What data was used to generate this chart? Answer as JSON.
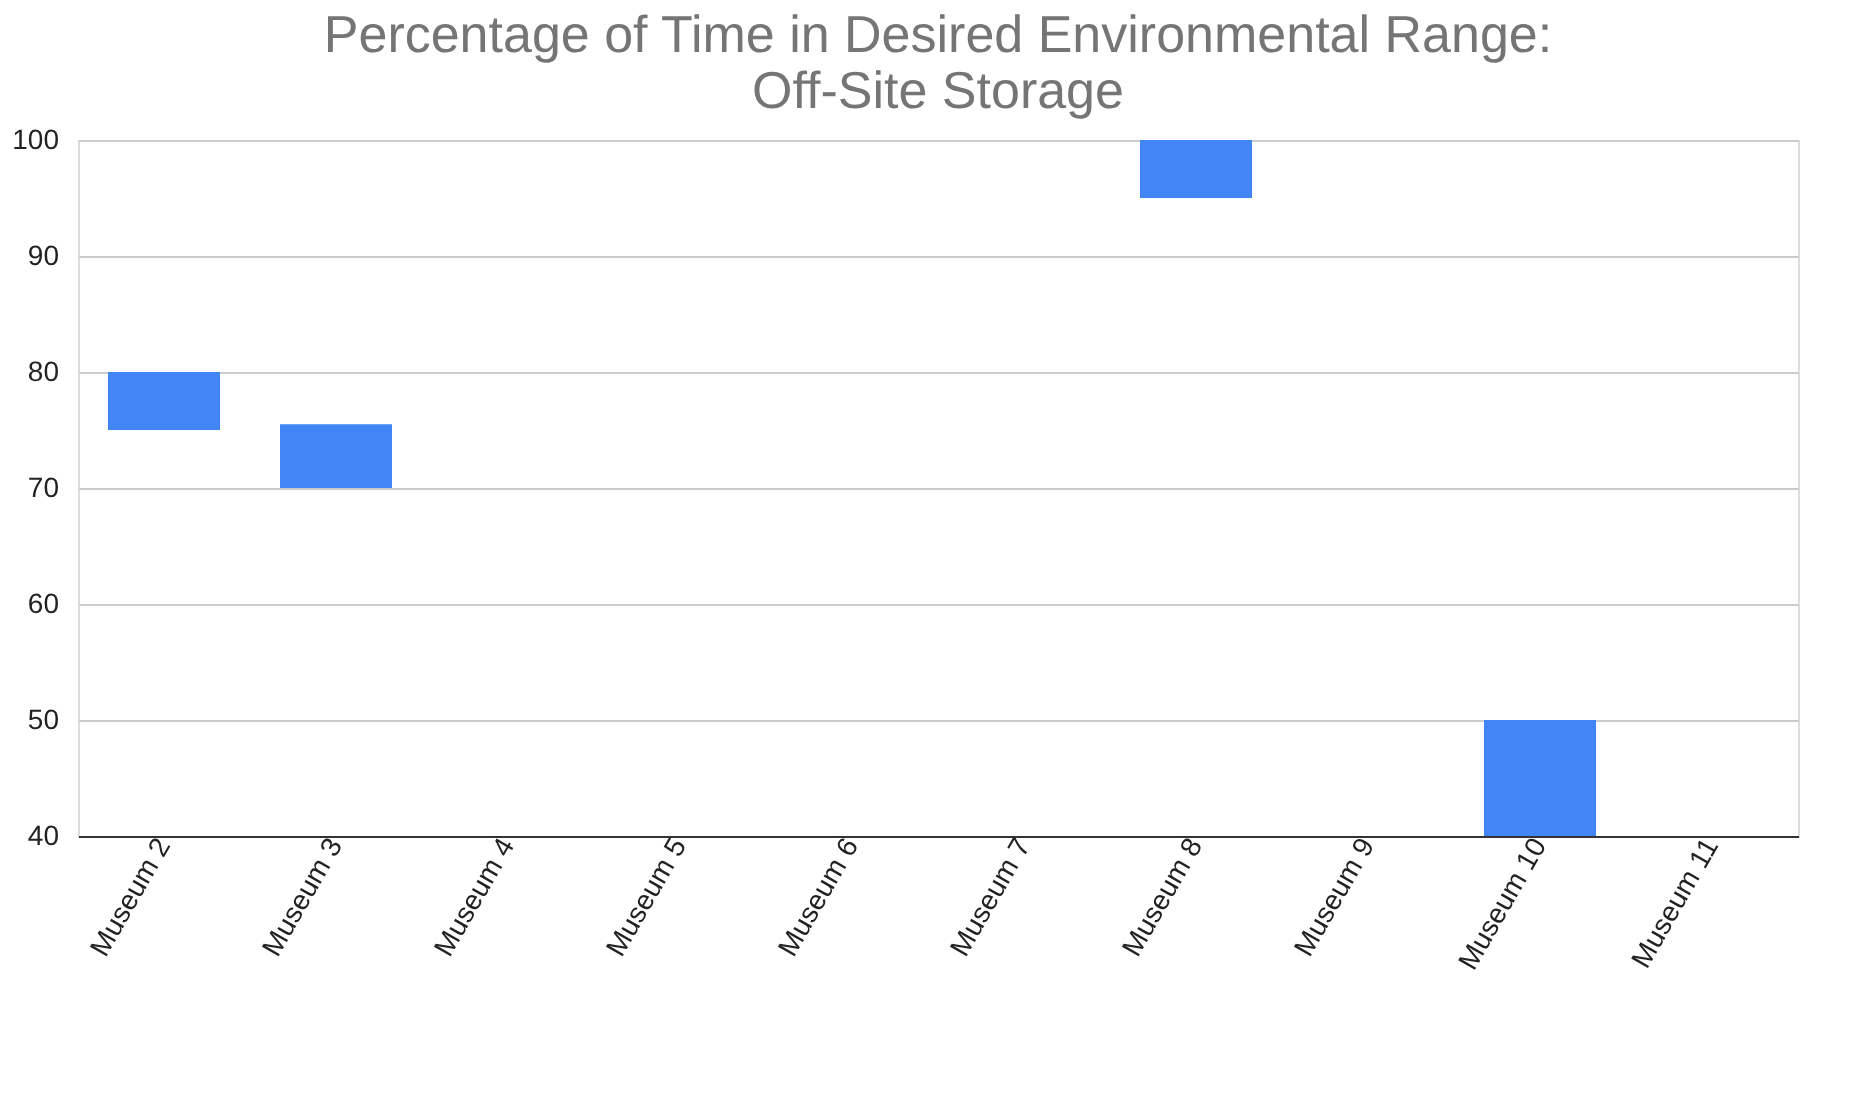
{
  "chart_data": {
    "type": "bar",
    "title": "Percentage of Time in Desired Environmental Range:\nOff-Site Storage",
    "categories": [
      "Museum 2",
      "Museum 3",
      "Museum 4",
      "Museum 5",
      "Museum 6",
      "Museum 7",
      "Museum 8",
      "Museum 9",
      "Museum 10",
      "Museum 11"
    ],
    "base": [
      75,
      70,
      null,
      null,
      null,
      null,
      95,
      null,
      40,
      null
    ],
    "values": [
      5,
      5.5,
      null,
      null,
      null,
      null,
      5,
      null,
      10,
      null
    ],
    "color": "#4285f4",
    "ylim": [
      40,
      100
    ],
    "yticks": [
      40,
      50,
      60,
      70,
      80,
      90,
      100
    ],
    "grid": "y"
  }
}
